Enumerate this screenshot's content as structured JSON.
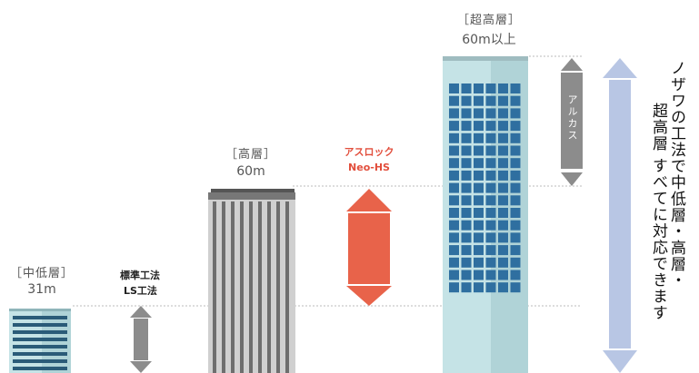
{
  "buildings": {
    "low": {
      "category": "［中低層］",
      "height": "31m"
    },
    "mid": {
      "category": "［高層］",
      "height": "60m"
    },
    "high": {
      "category": "［超高層］",
      "height": "60m以上"
    }
  },
  "methods": {
    "standard": {
      "line1": "標準工法",
      "line2": "LS工法"
    },
    "aslock": {
      "line1": "アスロック",
      "line2": "Neo-HS"
    },
    "alkasu": "アルカス"
  },
  "tagline": {
    "line1": "ノザワの工法で中低層・高層・",
    "line2": "超高層 すべてに対応できます"
  },
  "colors": {
    "aslock_red": "#e8634a",
    "standard_gray": "#8c8c8c",
    "range_blue": "#b8c6e4",
    "tower_pale": "#c5e3e6",
    "window_blue": "#2f6fa0"
  }
}
